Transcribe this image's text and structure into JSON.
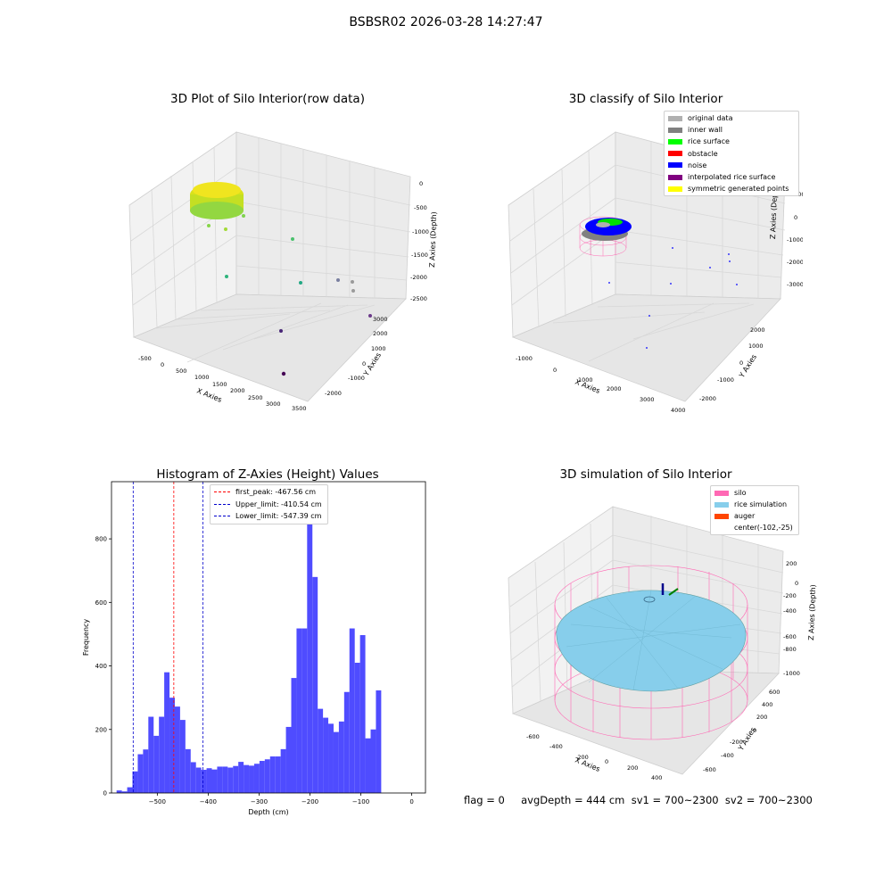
{
  "suptitle": "BSBSR02 2026-03-28 14:27:47",
  "status_text": "flag = 0     avgDepth = 444 cm  sv1 = 700~2300  sv2 = 700~2300",
  "colors": {
    "histogram_bar": "#4f4cff",
    "peak_line": "#ff0000",
    "limit_line": "#0000cc",
    "silo_wire": "#ff69b4",
    "rice_surface": "#87ceeb",
    "auger": "#ff4500"
  },
  "chart_data": [
    {
      "type": "scatter",
      "projection": "3d",
      "title": "3D Plot of Silo Interior(row data)",
      "xlabel": "X Axies",
      "ylabel": "Y Axies",
      "zlabel": "Z Axies (Depth)",
      "x_ticks": [
        "-500",
        "0",
        "500",
        "1000",
        "1500",
        "2000",
        "2500",
        "3000",
        "3500"
      ],
      "y_ticks": [
        "-2000",
        "-1000",
        "0",
        "1000",
        "2000",
        "3000"
      ],
      "z_ticks": [
        "0",
        "-500",
        "-1000",
        "-1500",
        "-2000",
        "-2500"
      ],
      "colormap": "viridis",
      "grid": true
    },
    {
      "type": "scatter",
      "projection": "3d",
      "title": "3D classify of Silo Interior",
      "xlabel": "X Axies",
      "ylabel": "Y Axies",
      "zlabel": "Z Axies (Depth)",
      "x_ticks": [
        "-1000",
        "0",
        "1000",
        "2000",
        "3000",
        "4000"
      ],
      "y_ticks": [
        "-2000",
        "-1000",
        "0",
        "1000",
        "2000"
      ],
      "z_ticks": [
        "1000",
        "0",
        "-1000",
        "-2000",
        "-3000"
      ],
      "legend": [
        {
          "label": "original data",
          "color": "#b0b0b0"
        },
        {
          "label": "inner wall",
          "color": "#808080"
        },
        {
          "label": "rice surface",
          "color": "#00ff00"
        },
        {
          "label": "obstacle",
          "color": "#ff0000"
        },
        {
          "label": "noise",
          "color": "#0000ff"
        },
        {
          "label": "interpolated rice surface",
          "color": "#800080"
        },
        {
          "label": "symmetric generated points",
          "color": "#ffff00"
        }
      ],
      "legend_position": "upper right",
      "grid": true
    },
    {
      "type": "bar",
      "title": "Histogram of Z-Axies (Height) Values",
      "xlabel": "Depth (cm)",
      "ylabel": "Frequency",
      "xlim": [
        -590,
        27
      ],
      "ylim": [
        0,
        980
      ],
      "x_ticks": [
        -500,
        -400,
        -300,
        -200,
        -100,
        0
      ],
      "y_ticks": [
        0,
        200,
        400,
        600,
        800
      ],
      "bin_start": -580,
      "bin_width": 10.4,
      "values": [
        8,
        5,
        18,
        68,
        122,
        137,
        240,
        180,
        240,
        380,
        300,
        272,
        230,
        138,
        97,
        80,
        73,
        78,
        74,
        83,
        83,
        80,
        85,
        98,
        88,
        86,
        92,
        101,
        106,
        115,
        115,
        138,
        208,
        362,
        518,
        518,
        930,
        680,
        265,
        237,
        218,
        192,
        225,
        318,
        518,
        410,
        497,
        172,
        200,
        323
      ],
      "vlines": [
        {
          "label": "first_peak: -467.56 cm",
          "x": -467.56,
          "color": "#ff0000"
        },
        {
          "label": "Upper_limit: -410.54 cm",
          "x": -410.54,
          "color": "#0000cc"
        },
        {
          "label": "Lower_limit: -547.39 cm",
          "x": -547.39,
          "color": "#0000cc"
        }
      ],
      "legend_position": "upper center",
      "grid": false
    },
    {
      "type": "surface",
      "projection": "3d",
      "title": "3D simulation of Silo Interior",
      "xlabel": "X Axies",
      "ylabel": "Y Axies",
      "zlabel": "Z Axies (Depth)",
      "x_ticks": [
        "-600",
        "-400",
        "-200",
        "0",
        "200",
        "400"
      ],
      "y_ticks": [
        "-600",
        "-400",
        "-200",
        "0",
        "200",
        "400",
        "600"
      ],
      "z_ticks": [
        "200",
        "0",
        "-200",
        "-400",
        "-600",
        "-800",
        "-1000"
      ],
      "legend": [
        {
          "label": "silo",
          "color": "#ff69b4"
        },
        {
          "label": "rice simulation",
          "color": "#87ceeb"
        },
        {
          "label": "auger",
          "color": "#ff4500"
        },
        {
          "label": "center(-102,-25)",
          "color": ""
        }
      ],
      "legend_position": "upper right",
      "grid": true
    }
  ]
}
